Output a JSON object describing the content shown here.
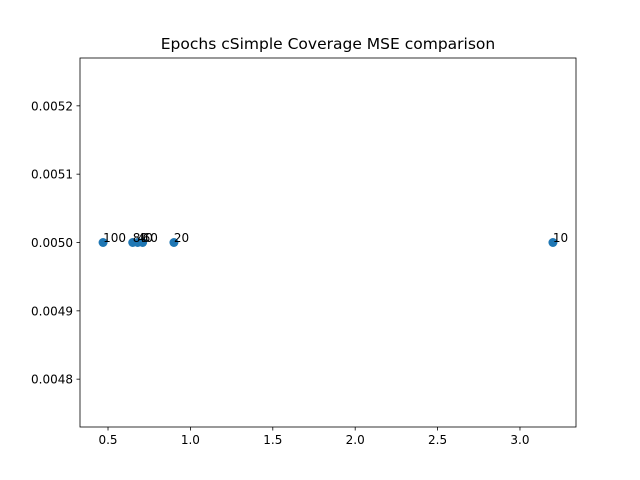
{
  "chart_data": {
    "type": "scatter",
    "title": "Epochs cSimple Coverage MSE comparison",
    "xlabel": "",
    "ylabel": "",
    "xlim": [
      0.33,
      3.34
    ],
    "ylim": [
      0.00473,
      0.00527
    ],
    "x_ticks": [
      0.5,
      1.0,
      1.5,
      2.0,
      2.5,
      3.0
    ],
    "x_tick_labels": [
      "0.5",
      "1.0",
      "1.5",
      "2.0",
      "2.5",
      "3.0"
    ],
    "y_ticks": [
      0.0048,
      0.0049,
      0.005,
      0.0051,
      0.0052
    ],
    "y_tick_labels": [
      "0.0048",
      "0.0049",
      "0.0050",
      "0.0051",
      "0.0052"
    ],
    "grid": false,
    "marker_color": "#1f77b4",
    "points": [
      {
        "x": 0.47,
        "y": 0.005,
        "label": "100"
      },
      {
        "x": 0.65,
        "y": 0.005,
        "label": "80"
      },
      {
        "x": 0.68,
        "y": 0.005,
        "label": "40"
      },
      {
        "x": 0.71,
        "y": 0.005,
        "label": "60"
      },
      {
        "x": 0.9,
        "y": 0.005,
        "label": "20"
      },
      {
        "x": 3.2,
        "y": 0.005,
        "label": "10"
      }
    ]
  }
}
